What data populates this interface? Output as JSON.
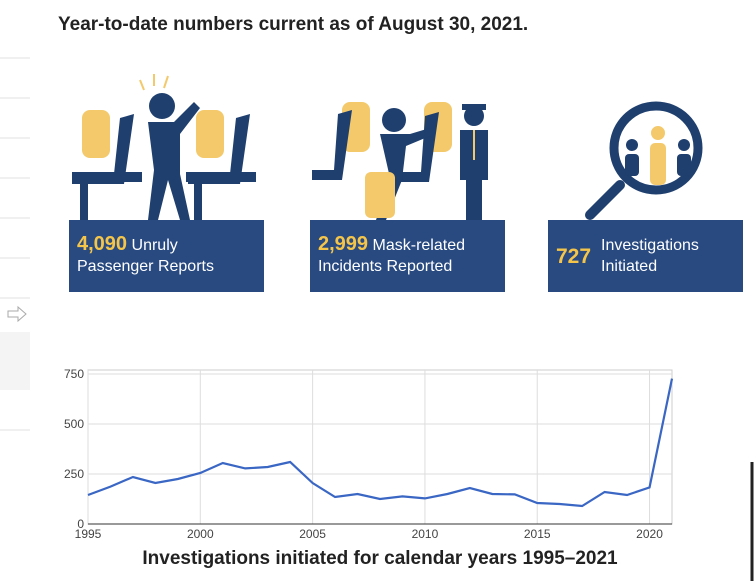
{
  "header": {
    "title": "Year-to-date numbers current as of August 30, 2021."
  },
  "stats": [
    {
      "value": "4,090",
      "label": "Unruly Passenger Reports"
    },
    {
      "value": "2,999",
      "label": "Mask-related Incidents Reported"
    },
    {
      "value": "727",
      "label": "Investigations Initiated"
    }
  ],
  "chart_data": {
    "type": "line",
    "x": [
      1995,
      1996,
      1997,
      1998,
      1999,
      2000,
      2001,
      2002,
      2003,
      2004,
      2005,
      2006,
      2007,
      2008,
      2009,
      2010,
      2011,
      2012,
      2013,
      2014,
      2015,
      2016,
      2017,
      2018,
      2019,
      2020,
      2021
    ],
    "values": [
      145,
      187,
      235,
      205,
      225,
      255,
      305,
      278,
      285,
      310,
      205,
      135,
      150,
      125,
      138,
      128,
      150,
      180,
      150,
      148,
      105,
      100,
      90,
      160,
      145,
      183,
      727
    ],
    "color": "#3a66c4",
    "xlim": [
      1995,
      2021
    ],
    "ylim": [
      0,
      770
    ],
    "xticks": [
      1995,
      2000,
      2005,
      2010,
      2015,
      2020
    ],
    "yticks": [
      0,
      250,
      500,
      750
    ],
    "grid": true,
    "x_label": "Investigations initiated for calendar years 1995–2021"
  }
}
